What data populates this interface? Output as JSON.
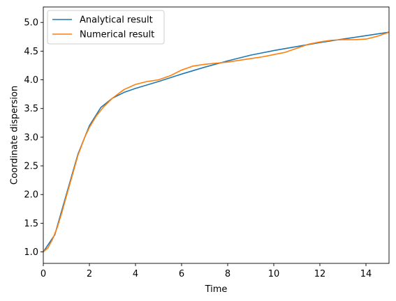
{
  "chart_data": {
    "type": "line",
    "title": "",
    "xlabel": "Time",
    "ylabel": "Coordinate dispersion",
    "xlim": [
      0,
      15
    ],
    "ylim": [
      0.8,
      5.27
    ],
    "xticks": [
      0,
      2,
      4,
      6,
      8,
      10,
      12,
      14
    ],
    "yticks": [
      1.0,
      1.5,
      2.0,
      2.5,
      3.0,
      3.5,
      4.0,
      4.5,
      5.0
    ],
    "xtick_labels": [
      "0",
      "2",
      "4",
      "6",
      "8",
      "10",
      "12",
      "14"
    ],
    "ytick_labels": [
      "1.0",
      "1.5",
      "2.0",
      "2.5",
      "3.0",
      "3.5",
      "4.0",
      "4.5",
      "5.0"
    ],
    "grid": false,
    "legend_position": "upper-left",
    "series": [
      {
        "name": "Analytical result",
        "color": "#1f77b4",
        "x": [
          0,
          0.5,
          1,
          1.5,
          2,
          2.5,
          3,
          3.5,
          4,
          5,
          6,
          7,
          8,
          9,
          10,
          11,
          12,
          13,
          14,
          15
        ],
        "y": [
          1.0,
          1.3,
          2.0,
          2.7,
          3.2,
          3.52,
          3.68,
          3.78,
          3.85,
          3.97,
          4.1,
          4.22,
          4.33,
          4.43,
          4.51,
          4.58,
          4.65,
          4.71,
          4.77,
          4.83
        ]
      },
      {
        "name": "Numerical result",
        "color": "#ff7f0e",
        "x": [
          0,
          0.2,
          0.4,
          0.6,
          0.8,
          1,
          1.2,
          1.5,
          1.8,
          2,
          2.3,
          2.6,
          3,
          3.5,
          4,
          4.5,
          5,
          5.5,
          6,
          6.5,
          7,
          7.5,
          8,
          8.5,
          9,
          9.5,
          10,
          10.5,
          11,
          11.5,
          12,
          12.5,
          13,
          13.5,
          14,
          14.5,
          15
        ],
        "y": [
          1.0,
          1.07,
          1.22,
          1.42,
          1.68,
          1.97,
          2.25,
          2.68,
          3.0,
          3.17,
          3.37,
          3.52,
          3.68,
          3.83,
          3.92,
          3.97,
          4.0,
          4.07,
          4.17,
          4.24,
          4.27,
          4.29,
          4.31,
          4.34,
          4.37,
          4.4,
          4.44,
          4.48,
          4.55,
          4.62,
          4.66,
          4.69,
          4.7,
          4.7,
          4.71,
          4.76,
          4.83
        ]
      }
    ]
  }
}
